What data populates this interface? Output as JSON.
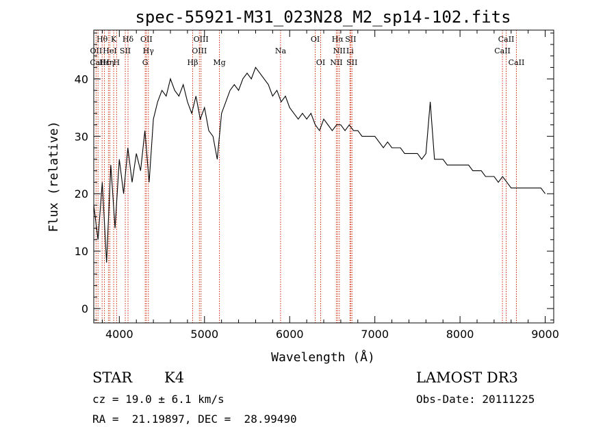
{
  "header": {
    "title": "spec-55921-M31_023N28_M2_sp14-102.fits"
  },
  "info": {
    "class_label": "STAR",
    "subclass_label": "K4",
    "survey": "LAMOST DR3",
    "redshift_line": "cz = 19.0 ± 6.1 km/s",
    "obs_date_line": "Obs-Date: 20111225",
    "coords_line": "RA =  21.19897, DEC =  28.99490"
  },
  "chart_data": {
    "type": "line",
    "title": "spec-55921-M31_023N28_M2_sp14-102.fits",
    "xlabel": "Wavelength (Å)",
    "ylabel": "Flux (relative)",
    "xlim": [
      3700,
      9100
    ],
    "ylim": [
      -2.5,
      48.5
    ],
    "x_ticks": [
      4000,
      5000,
      6000,
      7000,
      8000,
      9000
    ],
    "y_ticks": [
      0,
      10,
      20,
      30,
      40
    ],
    "line_color": "#000000",
    "marker_color": "#cc2200",
    "spectrum": {
      "x": [
        3700,
        3750,
        3800,
        3850,
        3900,
        3950,
        4000,
        4050,
        4100,
        4150,
        4200,
        4250,
        4300,
        4350,
        4400,
        4450,
        4500,
        4550,
        4600,
        4650,
        4700,
        4750,
        4800,
        4850,
        4900,
        4950,
        5000,
        5050,
        5100,
        5150,
        5200,
        5250,
        5300,
        5350,
        5400,
        5450,
        5500,
        5550,
        5600,
        5650,
        5700,
        5750,
        5800,
        5850,
        5900,
        5950,
        6000,
        6050,
        6100,
        6150,
        6200,
        6250,
        6300,
        6350,
        6400,
        6450,
        6500,
        6550,
        6600,
        6650,
        6700,
        6750,
        6800,
        6850,
        6900,
        6950,
        7000,
        7050,
        7100,
        7150,
        7200,
        7250,
        7300,
        7350,
        7400,
        7450,
        7500,
        7550,
        7600,
        7650,
        7700,
        7750,
        7800,
        7850,
        7900,
        7950,
        8000,
        8050,
        8100,
        8150,
        8200,
        8250,
        8300,
        8350,
        8400,
        8450,
        8500,
        8550,
        8600,
        8650,
        8700,
        8750,
        8800,
        8850,
        8900,
        8950,
        9000
      ],
      "y": [
        18,
        12,
        22,
        8,
        25,
        14,
        26,
        20,
        28,
        22,
        27,
        24,
        31,
        22,
        33,
        36,
        38,
        37,
        40,
        38,
        37,
        39,
        36,
        34,
        37,
        33,
        35,
        31,
        30,
        26,
        34,
        36,
        38,
        39,
        38,
        40,
        41,
        40,
        42,
        41,
        40,
        39,
        37,
        38,
        36,
        37,
        35,
        34,
        33,
        34,
        33,
        34,
        32,
        31,
        33,
        32,
        31,
        32,
        32,
        31,
        32,
        31,
        31,
        30,
        30,
        30,
        30,
        29,
        28,
        29,
        28,
        28,
        28,
        27,
        27,
        27,
        27,
        26,
        27,
        36,
        26,
        26,
        26,
        25,
        25,
        25,
        25,
        25,
        25,
        24,
        24,
        24,
        23,
        23,
        23,
        22,
        23,
        22,
        21,
        21,
        21,
        21,
        21,
        21,
        21,
        21,
        20
      ]
    },
    "lines": [
      {
        "name": "Hθ",
        "wavelength": 3798,
        "row": 1
      },
      {
        "name": "OII",
        "wavelength": 3727,
        "row": 2
      },
      {
        "name": "CaII",
        "wavelength": 3750,
        "row": 3
      },
      {
        "name": "Hε",
        "wavelength": 3825,
        "row": 3
      },
      {
        "name": "HeI",
        "wavelength": 3889,
        "row": 2
      },
      {
        "name": "K",
        "wavelength": 3934,
        "row": 1
      },
      {
        "name": "Hη",
        "wavelength": 3872,
        "row": 3
      },
      {
        "name": "H",
        "wavelength": 3968,
        "row": 3
      },
      {
        "name": "SII",
        "wavelength": 4070,
        "row": 2
      },
      {
        "name": "Hδ",
        "wavelength": 4102,
        "row": 1
      },
      {
        "name": "OII",
        "wavelength": 4318,
        "row": 1
      },
      {
        "name": "Hγ",
        "wavelength": 4341,
        "row": 2
      },
      {
        "name": "G",
        "wavelength": 4304,
        "row": 3
      },
      {
        "name": "OIII",
        "wavelength": 4959,
        "row": 1
      },
      {
        "name": "OIII",
        "wavelength": 4940,
        "row": 2
      },
      {
        "name": "Hβ",
        "wavelength": 4861,
        "row": 3
      },
      {
        "name": "Mg",
        "wavelength": 5175,
        "row": 3
      },
      {
        "name": "Na",
        "wavelength": 5893,
        "row": 2
      },
      {
        "name": "OI",
        "wavelength": 6300,
        "row": 1
      },
      {
        "name": "OI",
        "wavelength": 6364,
        "row": 3
      },
      {
        "name": "Hα",
        "wavelength": 6563,
        "row": 1
      },
      {
        "name": "SII",
        "wavelength": 6716,
        "row": 1
      },
      {
        "name": "NII",
        "wavelength": 6583,
        "row": 2
      },
      {
        "name": "Li",
        "wavelength": 6708,
        "row": 2
      },
      {
        "name": "NII",
        "wavelength": 6548,
        "row": 3
      },
      {
        "name": "SII",
        "wavelength": 6731,
        "row": 3
      },
      {
        "name": "CaII",
        "wavelength": 8542,
        "row": 1
      },
      {
        "name": "CaII",
        "wavelength": 8498,
        "row": 2
      },
      {
        "name": "CaII",
        "wavelength": 8662,
        "row": 3
      }
    ]
  }
}
